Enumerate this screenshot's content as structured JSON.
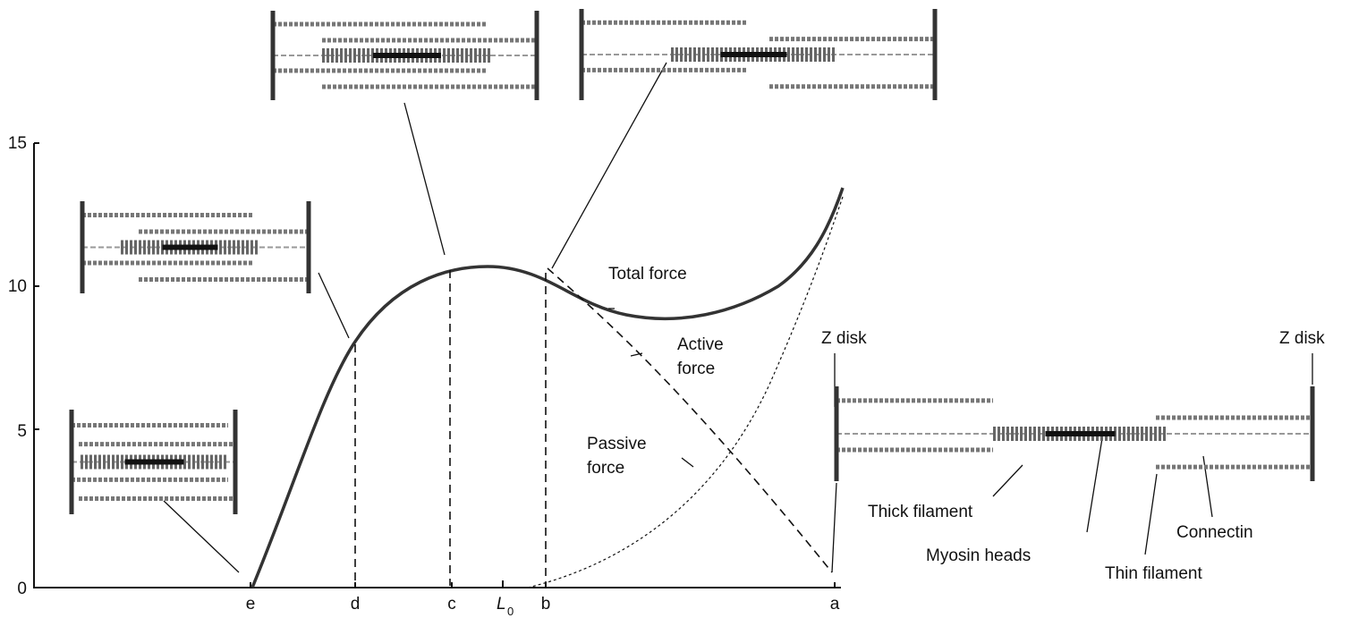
{
  "y_axis": {
    "ticks": [
      "15",
      "10",
      "5",
      "0"
    ]
  },
  "x_axis": {
    "labels": [
      "e",
      "d",
      "c",
      "b",
      "a"
    ],
    "l0": {
      "text": "L",
      "subscript": "0"
    }
  },
  "curve_labels": {
    "total": "Total force",
    "active": [
      "Active",
      "force"
    ],
    "passive": [
      "Passive",
      "force"
    ]
  },
  "sarcomere_labels": {
    "z_disk_left": "Z disk",
    "z_disk_right": "Z disk",
    "thick_filament": "Thick filament",
    "myosin_heads": "Myosin heads",
    "thin_filament": "Thin filament",
    "connectin": "Connectin"
  }
}
